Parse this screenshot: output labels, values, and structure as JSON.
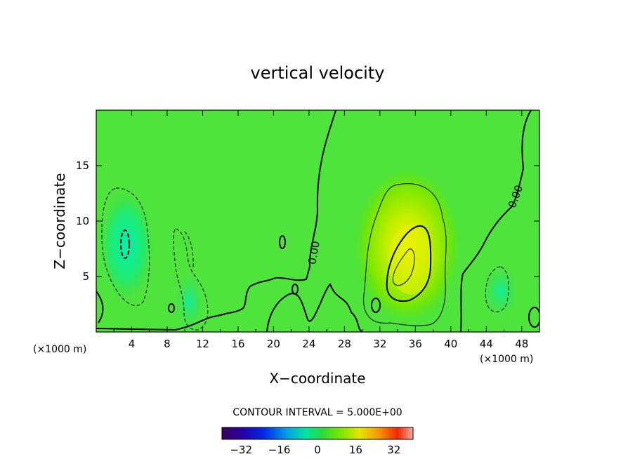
{
  "chart_data": {
    "type": "heatmap",
    "title": "vertical velocity",
    "xlabel": "X−coordinate",
    "ylabel": "Z−coordinate",
    "x_unit_left": "(×1000 m)",
    "x_unit_right": "(×1000 m)",
    "xlim": [
      0,
      50
    ],
    "ylim": [
      0,
      20
    ],
    "x_ticks": [
      4,
      8,
      12,
      16,
      20,
      24,
      28,
      32,
      36,
      40,
      44,
      48
    ],
    "y_ticks": [
      5,
      10,
      15
    ],
    "contour_label": "0.00",
    "contour_interval_text": "CONTOUR INTERVAL = 5.000E+00",
    "colorbar": {
      "range": [
        -40,
        40
      ],
      "ticks": [
        -32,
        -16,
        0,
        16,
        32
      ],
      "tick_labels": [
        "−32",
        "−16",
        "0",
        "16",
        "32"
      ]
    },
    "features": [
      {
        "kind": "downdraft",
        "x": 3.2,
        "z": 8.2,
        "value": -14
      },
      {
        "kind": "downdraft",
        "x": 10.5,
        "z": 2.5,
        "value": -9
      },
      {
        "kind": "downdraft",
        "x": 46,
        "z": 3.5,
        "value": -9
      },
      {
        "kind": "updraft",
        "x": 35,
        "z": 5.8,
        "value": 12
      }
    ]
  }
}
